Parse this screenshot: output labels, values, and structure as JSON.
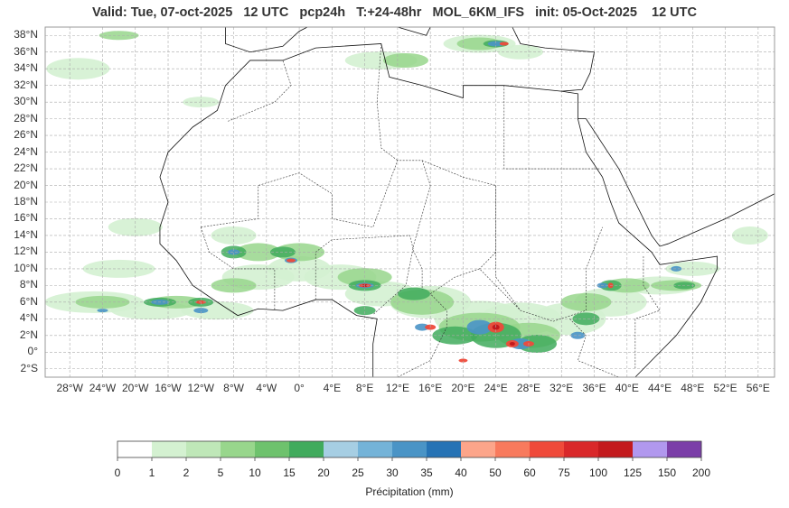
{
  "title": "Valid: Tue, 07-oct-2025   12 UTC   pcp24h   T:+24-48hr   MOL_6KM_IFS   init: 05-Oct-2025    12 UTC",
  "map": {
    "lat_labels": [
      "38°N",
      "36°N",
      "34°N",
      "32°N",
      "30°N",
      "28°N",
      "26°N",
      "24°N",
      "22°N",
      "20°N",
      "18°N",
      "16°N",
      "14°N",
      "12°N",
      "10°N",
      "8°N",
      "6°N",
      "4°N",
      "2°N",
      "0°",
      "2°S"
    ],
    "lon_labels": [
      "28°W",
      "24°W",
      "20°W",
      "16°W",
      "12°W",
      "8°W",
      "4°W",
      "0°",
      "4°E",
      "8°E",
      "12°E",
      "16°E",
      "20°E",
      "24°E",
      "28°E",
      "32°E",
      "36°E",
      "40°E",
      "44°E",
      "48°E",
      "52°E",
      "56°E"
    ],
    "extent": {
      "lon_min": -31,
      "lon_max": 58,
      "lat_min": -3,
      "lat_max": 39
    }
  },
  "colorbar": {
    "title": "Précipitation (mm)",
    "ticks": [
      "0",
      "1",
      "2",
      "5",
      "10",
      "15",
      "20",
      "25",
      "30",
      "35",
      "40",
      "50",
      "60",
      "75",
      "100",
      "125",
      "150",
      "200"
    ],
    "colors": [
      "#ffffff",
      "#d4f1d1",
      "#bfe7b8",
      "#98d68c",
      "#6ec26d",
      "#41ab5d",
      "#a6cee3",
      "#74b3d8",
      "#4a94c6",
      "#2673b5",
      "#fca58a",
      "#f87a5d",
      "#ef4a3a",
      "#d9282a",
      "#c31a1d",
      "#b198ee",
      "#7b3ea8",
      "#4b0082"
    ]
  }
}
